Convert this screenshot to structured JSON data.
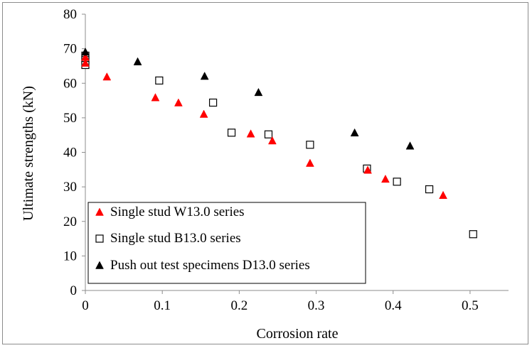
{
  "chart_data": {
    "type": "scatter",
    "title": "",
    "xlabel": "Corrosion rate",
    "ylabel": "Ultimate strengths (kN)",
    "xlim": [
      0,
      0.55
    ],
    "ylim": [
      0,
      80
    ],
    "xticks": [
      0,
      0.1,
      0.2,
      0.3,
      0.4,
      0.5
    ],
    "xtick_labels": [
      "0",
      "0.1",
      "0.2",
      "0.3",
      "0.4",
      "0.5"
    ],
    "yticks": [
      0,
      10,
      20,
      30,
      40,
      50,
      60,
      70,
      80
    ],
    "ytick_labels": [
      "0",
      "10",
      "20",
      "30",
      "40",
      "50",
      "60",
      "70",
      "80"
    ],
    "grid": false,
    "legend_position": "bottom-left",
    "series": [
      {
        "name": "Single stud W13.0 series",
        "marker": "triangle-filled",
        "color": "#ff0000",
        "points": [
          [
            0,
            67.5
          ],
          [
            0,
            65.8
          ],
          [
            0.028,
            61.8
          ],
          [
            0.091,
            55.8
          ],
          [
            0.121,
            54.3
          ],
          [
            0.154,
            51.0
          ],
          [
            0.215,
            45.3
          ],
          [
            0.243,
            43.3
          ],
          [
            0.292,
            36.8
          ],
          [
            0.367,
            34.8
          ],
          [
            0.39,
            32.2
          ],
          [
            0.465,
            27.5
          ]
        ]
      },
      {
        "name": "Single stud B13.0 series",
        "marker": "square-open",
        "color": "#000000",
        "points": [
          [
            0,
            68.0
          ],
          [
            0,
            66.7
          ],
          [
            0,
            65.3
          ],
          [
            0.096,
            60.8
          ],
          [
            0.166,
            54.4
          ],
          [
            0.19,
            45.7
          ],
          [
            0.238,
            45.2
          ],
          [
            0.292,
            42.2
          ],
          [
            0.366,
            35.3
          ],
          [
            0.405,
            31.5
          ],
          [
            0.447,
            29.3
          ],
          [
            0.504,
            16.3
          ]
        ]
      },
      {
        "name": "Push out test specimens D13.0 series",
        "marker": "triangle-filled",
        "color": "#000000",
        "points": [
          [
            0,
            69.0
          ],
          [
            0.068,
            66.2
          ],
          [
            0.155,
            62.0
          ],
          [
            0.225,
            57.3
          ],
          [
            0.35,
            45.6
          ],
          [
            0.422,
            41.8
          ]
        ]
      }
    ]
  }
}
